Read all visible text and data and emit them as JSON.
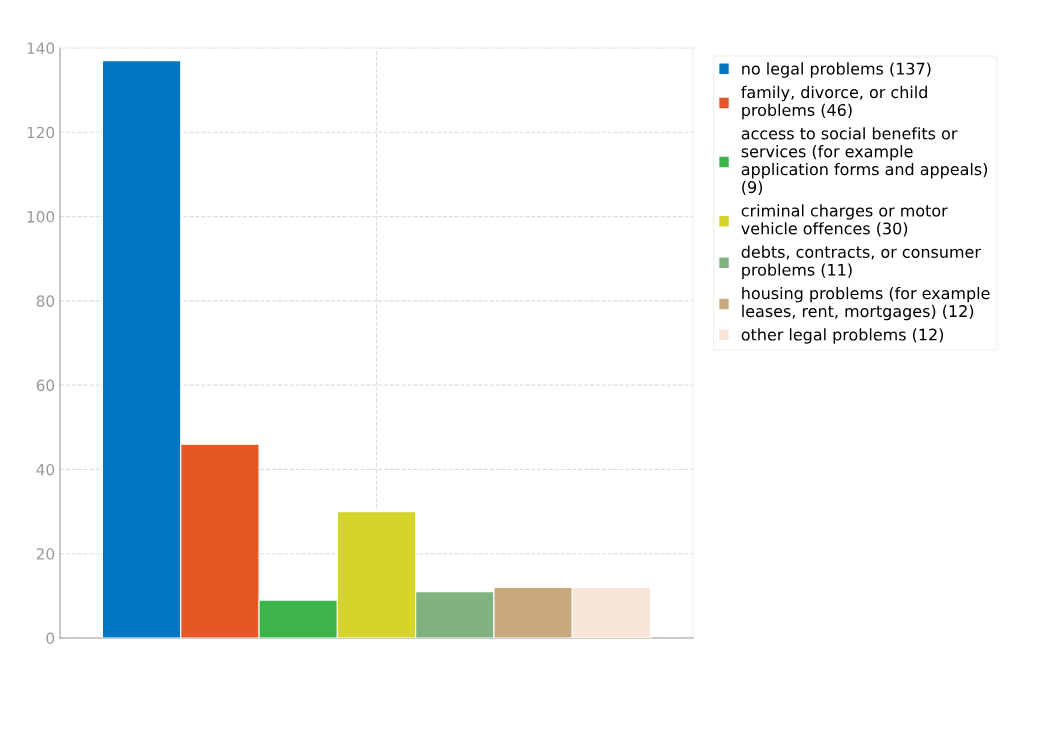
{
  "chart_data": {
    "type": "bar",
    "categories": [
      null
    ],
    "series": [
      {
        "name": "no legal problems (137)",
        "color": "#0077c0",
        "values": [
          137
        ]
      },
      {
        "name": "family, divorce, or child problems (46)",
        "color": "#e55725",
        "values": [
          46
        ]
      },
      {
        "name": "access to social benefits or services (for example application forms and appeals) (9)",
        "color": "#3cb44b",
        "values": [
          9
        ]
      },
      {
        "name": "criminal charges or motor vehicle offences (30)",
        "color": "#d4d42a",
        "values": [
          30
        ]
      },
      {
        "name": "debts, contracts, or consumer problems (11)",
        "color": "#7fb27f",
        "values": [
          11
        ]
      },
      {
        "name": "housing problems (for example leases, rent, mortgages) (12)",
        "color": "#c8a97e",
        "values": [
          12
        ]
      },
      {
        "name": "other legal problems (12)",
        "color": "#f9e4d9",
        "values": [
          12
        ]
      }
    ],
    "ylim": [
      0,
      140
    ],
    "yticks": [
      0,
      20,
      40,
      60,
      80,
      100,
      120,
      140
    ],
    "grid": true,
    "legend": "right"
  }
}
